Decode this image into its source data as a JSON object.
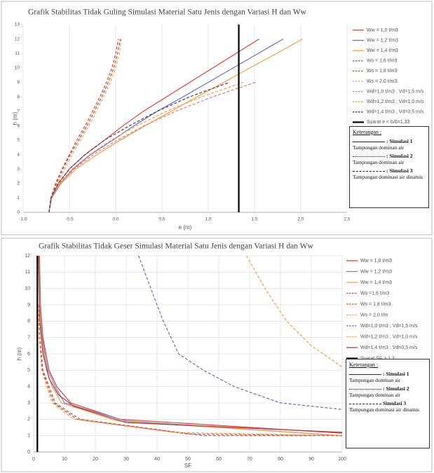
{
  "chart_data": [
    {
      "type": "line",
      "title": "Grafik Stabilitas Tidak Guling Simulasi Material Satu Jenis dengan Variasi H  dan Ww",
      "x_label": "e (m)",
      "y_label": "h (m)",
      "xlim": [
        -1.0,
        2.5
      ],
      "xticks": [
        {
          "value": -1.0,
          "label": "-1,0"
        },
        {
          "value": -0.5,
          "label": "-0,5"
        },
        {
          "value": 0,
          "label": "0,0"
        },
        {
          "value": 0.5,
          "label": "0,5"
        },
        {
          "value": 1.0,
          "label": "1,0"
        },
        {
          "value": 1.5,
          "label": "1,5"
        },
        {
          "value": 2.0,
          "label": "2,0"
        },
        {
          "value": 2.5,
          "label": "2,5"
        }
      ],
      "ylim": [
        0,
        13
      ],
      "yticks": [
        0,
        1,
        2,
        3,
        4,
        5,
        6,
        7,
        8,
        9,
        10,
        11,
        12,
        13
      ],
      "grid": "x",
      "series": [
        {
          "name": "Ww = 1,0 t/m3",
          "color": "#e0403a",
          "dash": "solid",
          "x": [
            -0.72,
            -0.7,
            -0.62,
            -0.5,
            -0.33,
            -0.12,
            0.08,
            0.3,
            0.55,
            0.8,
            1.05,
            1.3,
            1.55
          ],
          "values": [
            0,
            1,
            2,
            3,
            4,
            5,
            6,
            7,
            8,
            9,
            10,
            11,
            12
          ]
        },
        {
          "name": "Ww = 1,2 t/m3",
          "color": "#6f6fc9",
          "dash": "solid",
          "x": [
            -0.72,
            -0.7,
            -0.6,
            -0.46,
            -0.27,
            -0.03,
            0.2,
            0.45,
            0.73,
            1.0,
            1.27,
            1.54,
            1.81
          ],
          "values": [
            0,
            1,
            2,
            3,
            4,
            5,
            6,
            7,
            8,
            9,
            10,
            11,
            12
          ]
        },
        {
          "name": "Ww = 1,4 t/m3",
          "color": "#f5a04a",
          "dash": "solid",
          "x": [
            -0.72,
            -0.69,
            -0.59,
            -0.43,
            -0.2,
            0.05,
            0.32,
            0.6,
            0.88,
            1.17,
            1.45,
            1.74,
            2.02
          ],
          "values": [
            0,
            1,
            2,
            3,
            4,
            5,
            6,
            7,
            8,
            9,
            10,
            11,
            12
          ]
        },
        {
          "name": "Ws = 1,6 t/m3",
          "color": "#c0504d",
          "dash": "dash",
          "x": [
            -0.72,
            -0.7,
            -0.65,
            -0.58,
            -0.5,
            -0.42,
            -0.33,
            -0.25,
            -0.17,
            -0.1,
            -0.04,
            0.0,
            0.03
          ],
          "values": [
            0,
            1,
            2,
            3,
            4,
            5,
            6,
            7,
            8,
            9,
            10,
            11,
            12
          ]
        },
        {
          "name": "Ws = 1,8 t/m3",
          "color": "#c65911",
          "dash": "dash",
          "x": [
            -0.72,
            -0.7,
            -0.64,
            -0.57,
            -0.49,
            -0.4,
            -0.31,
            -0.23,
            -0.15,
            -0.08,
            -0.02,
            0.02,
            0.05
          ],
          "values": [
            0,
            1,
            2,
            3,
            4,
            5,
            6,
            7,
            8,
            9,
            10,
            11,
            12
          ]
        },
        {
          "name": "Ws = 2,0 t/m3",
          "color": "#f4a07a",
          "dash": "dash",
          "x": [
            -0.72,
            -0.69,
            -0.63,
            -0.55,
            -0.47,
            -0.38,
            -0.29,
            -0.21,
            -0.13,
            -0.06,
            0.0,
            0.04,
            0.06
          ],
          "values": [
            0,
            1,
            2,
            3,
            4,
            5,
            6,
            7,
            8,
            9,
            10,
            11,
            12
          ]
        },
        {
          "name": "Wd=1,0 t/m3 ; Vd=1,5 m/s",
          "color": "#e87878",
          "dash": "dash",
          "x": [
            -0.72,
            -0.69,
            -0.6,
            -0.45,
            -0.24,
            0.02,
            0.31,
            0.65,
            1.05,
            1.51
          ],
          "values": [
            0,
            1,
            2,
            3,
            4,
            5,
            6,
            7,
            8,
            9
          ]
        },
        {
          "name": "Wd=1,2 t/m3 ; Vd=1,0 m/s",
          "color": "#f0a048",
          "dash": "dash",
          "x": [
            -0.72,
            -0.7,
            -0.61,
            -0.47,
            -0.28,
            -0.05,
            0.23,
            0.55,
            0.93,
            1.38
          ],
          "values": [
            0,
            1,
            2,
            3,
            4,
            5,
            6,
            7,
            8,
            9
          ]
        },
        {
          "name": "Wd=1,4 t/m3 ; Vd=0,5 m/s",
          "color": "#4a3a5a",
          "dash": "dash",
          "x": [
            -0.72,
            -0.7,
            -0.62,
            -0.5,
            -0.33,
            -0.12,
            0.15,
            0.45,
            0.8,
            1.23
          ],
          "values": [
            0,
            1,
            2,
            3,
            4,
            5,
            6,
            7,
            8,
            9
          ]
        },
        {
          "name": "Syarat e < b/6=1,33",
          "color": "#000000",
          "dash": "solid",
          "line_width": 2.2,
          "x": [
            1.33,
            1.33
          ],
          "values": [
            0,
            13
          ]
        }
      ],
      "notes": {
        "title": "Keterangan :",
        "items": [
          {
            "label": ": Simulasi 1",
            "text": "Tampungan dominan  air"
          },
          {
            "label": ": Simulasi 2",
            "text": "Tampungan dominan  air"
          },
          {
            "label": ": Simulasi  3",
            "text": "Tampungan dominasi air dinamis"
          }
        ]
      }
    },
    {
      "type": "line",
      "title": "Grafik Stabilitas Tidak Geser Simulasi Material Satu Jenis dengan Variasi H dan Ww",
      "x_label": "SF",
      "y_label": "h (m)",
      "xlim": [
        0,
        100
      ],
      "xticks": [
        0,
        10,
        20,
        30,
        40,
        50,
        60,
        70,
        80,
        90,
        100
      ],
      "ylim": [
        0,
        12
      ],
      "yticks": [
        0,
        1,
        2,
        3,
        4,
        5,
        6,
        7,
        8,
        9,
        10,
        11,
        12
      ],
      "grid": "both",
      "series": [
        {
          "name": "Ww = 1,0 t/m3",
          "color": "#e0403a",
          "dash": "solid",
          "x": [
            1.9,
            2.2,
            3,
            4,
            5,
            7.5,
            12,
            28,
            100
          ],
          "values": [
            12,
            9,
            7,
            6,
            5,
            4,
            3,
            2,
            1.15
          ]
        },
        {
          "name": "Ww = 1,2 t/m3",
          "color": "#7f7fd0",
          "dash": "solid",
          "x": [
            1.8,
            2.1,
            2.8,
            3.6,
            4.6,
            7,
            10,
            30,
            100
          ],
          "values": [
            12,
            9,
            7,
            6,
            5,
            4,
            3,
            1.9,
            1.0
          ]
        },
        {
          "name": "Ww = 1,4 t/m3",
          "color": "#f5a04a",
          "dash": "solid",
          "x": [
            1.7,
            2,
            2.6,
            3.3,
            4.2,
            6,
            9,
            27,
            100
          ],
          "values": [
            12,
            9,
            7,
            6,
            5,
            4,
            3,
            1.9,
            1.0
          ]
        },
        {
          "name": "Ws =1,6 t/m3",
          "color": "#c0504d",
          "dash": "dash",
          "x": [
            1.5,
            2,
            3,
            5,
            7,
            15,
            55,
            100
          ],
          "values": [
            9,
            7,
            5,
            4,
            3,
            2,
            1.0,
            1.0
          ]
        },
        {
          "name": "Ws = 1,8 t/m3",
          "color": "#c65911",
          "dash": "dash",
          "x": [
            1.5,
            1.9,
            2.8,
            4.6,
            6.5,
            14,
            50,
            100
          ],
          "values": [
            9,
            7,
            5,
            4,
            3,
            2,
            1.1,
            1.0
          ]
        },
        {
          "name": "Ws = 2,0  t/m",
          "color": "#f4a07a",
          "dash": "dash",
          "x": [
            1.4,
            1.8,
            2.6,
            4.2,
            6,
            13,
            45,
            100
          ],
          "values": [
            9,
            7,
            5,
            4,
            3,
            2,
            1.2,
            1.0
          ]
        },
        {
          "name": "Wd=1,0 t/m3 ; Vd=1,5 m/s",
          "color": "#6b6bc0",
          "dash": "dash",
          "x": [
            34,
            38,
            42,
            47,
            55,
            65,
            80,
            100
          ],
          "values": [
            12,
            10,
            8,
            6,
            5,
            4,
            3,
            2.6
          ]
        },
        {
          "name": "Wd=1,2 t/m3 ; Vd=1,0 m/s",
          "color": "#f5a04a",
          "dash": "dash",
          "x": [
            69,
            75,
            82,
            90,
            100
          ],
          "values": [
            12,
            10,
            8,
            6.5,
            5.2
          ]
        },
        {
          "name": "Wd=1,4 t/m3 ; Vd=0,5 m/s",
          "color": "#a0403a",
          "dash": "solid",
          "x": [
            1.6,
            2,
            3,
            5,
            8,
            13,
            30,
            100
          ],
          "values": [
            12,
            8,
            6,
            4.5,
            3.5,
            2.8,
            1.8,
            1.2
          ]
        },
        {
          "name": "Syarat SF > 1,2",
          "color": "#000000",
          "dash": "solid",
          "line_width": 2.2,
          "x": [
            1.2,
            1.2
          ],
          "values": [
            0,
            12
          ]
        }
      ],
      "notes": {
        "title": "Keterangan :",
        "items": [
          {
            "label": ": Simulasi 1",
            "text": "Tampungan dominan  air"
          },
          {
            "label": ": Simulasi 2",
            "text": "Tampungan dominan  air"
          },
          {
            "label": "Simulasi  3",
            "text": "Tampungan dominasi air dinamis"
          }
        ]
      }
    }
  ]
}
